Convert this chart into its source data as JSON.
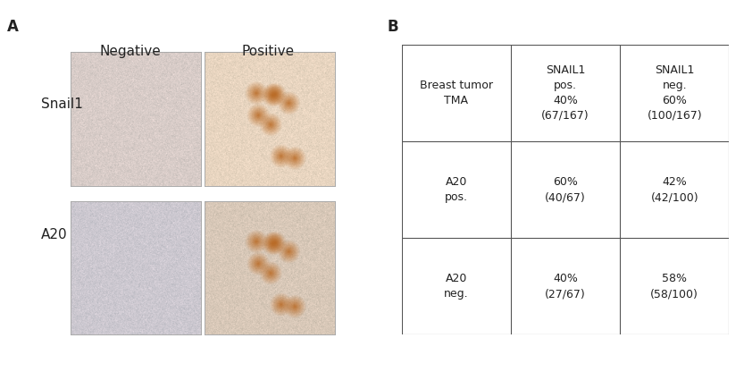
{
  "panel_A_label": "A",
  "panel_B_label": "B",
  "col_headers": [
    "Negative",
    "Positive"
  ],
  "row_labels": [
    "Snail1",
    "A20"
  ],
  "table_header_row": [
    "Breast tumor\nTMA",
    "SNAIL1\npos.\n40%\n(67/167)",
    "SNAIL1\nneg.\n60%\n(100/167)"
  ],
  "table_row1": [
    "A20\npos.",
    "60%\n(40/67)",
    "42%\n(42/100)"
  ],
  "table_row2": [
    "A20\nneg.",
    "40%\n(27/67)",
    "58%\n(58/100)"
  ],
  "background_color": "#ffffff",
  "img_bg_snail1_neg": "#d8ccc8",
  "img_bg_snail1_pos": "#e8d5c0",
  "img_bg_a20_neg": "#ccc8d0",
  "img_bg_a20_pos": "#d8c8b8",
  "text_color": "#222222",
  "table_line_color": "#555555",
  "font_size_label": 11,
  "font_size_table": 9,
  "font_size_header": 11
}
